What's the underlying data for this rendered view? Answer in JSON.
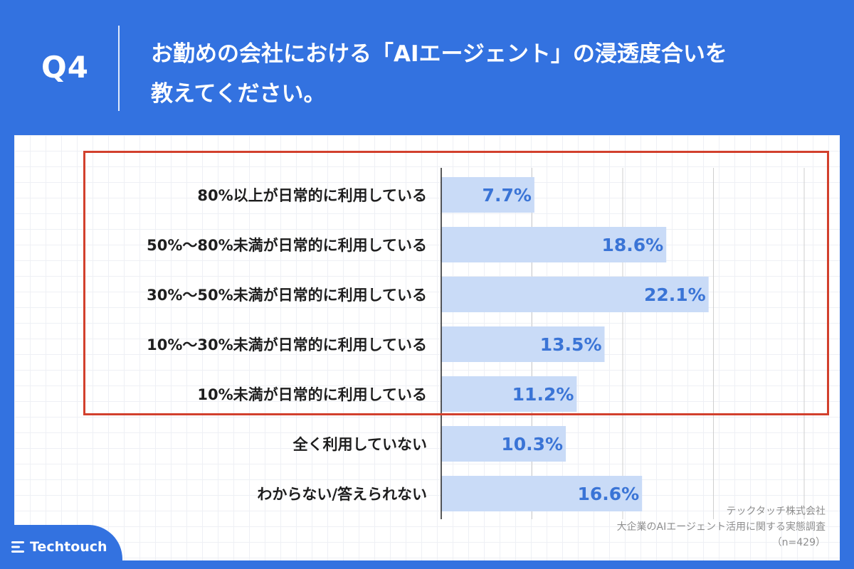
{
  "header": {
    "question": "Q4",
    "title_line1": "お勤めの会社における「AIエージェント」の浸透度合いを",
    "title_line2": "教えてください。"
  },
  "chart_data": {
    "type": "bar",
    "orientation": "horizontal",
    "categories": [
      "80%以上が日常的に利用している",
      "50%〜80%未満が日常的に利用している",
      "30%〜50%未満が日常的に利用している",
      "10%〜30%未満が日常的に利用している",
      "10%未満が日常的に利用している",
      "全く利用していない",
      "わからない/答えられない"
    ],
    "values": [
      7.7,
      18.6,
      22.1,
      13.5,
      11.2,
      10.3,
      16.6
    ],
    "value_labels": [
      "7.7%",
      "18.6%",
      "22.1%",
      "13.5%",
      "11.2%",
      "10.3%",
      "16.6%"
    ],
    "xlim": [
      0,
      30
    ],
    "grid": true,
    "highlighted_categories": [
      0,
      1,
      2,
      3,
      4
    ]
  },
  "footer": {
    "company": "テックタッチ株式会社",
    "survey": "大企業のAIエージェント活用に関する実態調査",
    "sample": "（n=429）",
    "brand": "Techtouch"
  },
  "colors": {
    "background": "#3372e0",
    "bar": "#c9dbf7",
    "value_text": "#3a74d6",
    "highlight_border": "#d2402d"
  }
}
